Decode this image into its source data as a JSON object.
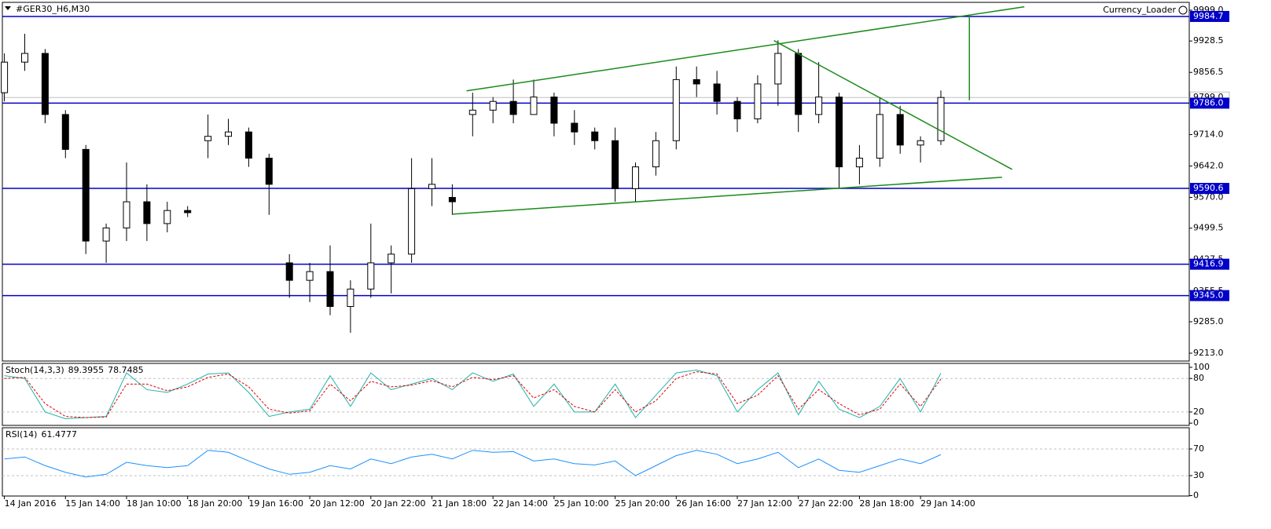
{
  "chart_data": [
    {
      "type": "candlestick",
      "title": "#GER30_H6,M30",
      "watermark": "Currency_Loader",
      "open": [
        9810,
        9880,
        9900,
        9760,
        9680,
        9470,
        9500,
        9560,
        9510,
        9540,
        9700,
        9710,
        9720,
        9660,
        9420,
        9380,
        9400,
        9320,
        9360,
        9420,
        9440,
        9590,
        9570,
        9760,
        9770,
        9790,
        9760,
        9800,
        9740,
        9720,
        9700,
        9590,
        9640,
        9700,
        9840,
        9830,
        9790,
        9750,
        9830,
        9900,
        9760,
        9800,
        9640,
        9660,
        9760,
        9690,
        9700
      ],
      "high": [
        9900,
        9945,
        9910,
        9770,
        9690,
        9510,
        9650,
        9600,
        9560,
        9550,
        9760,
        9750,
        9730,
        9670,
        9440,
        9420,
        9460,
        9380,
        9510,
        9460,
        9660,
        9660,
        9600,
        9810,
        9800,
        9840,
        9840,
        9810,
        9770,
        9730,
        9730,
        9650,
        9720,
        9870,
        9870,
        9860,
        9800,
        9850,
        9930,
        9910,
        9880,
        9810,
        9690,
        9800,
        9780,
        9710,
        9815
      ],
      "low": [
        9790,
        9860,
        9740,
        9660,
        9440,
        9420,
        9470,
        9470,
        9490,
        9525,
        9660,
        9690,
        9640,
        9530,
        9340,
        9330,
        9300,
        9260,
        9340,
        9350,
        9420,
        9550,
        9530,
        9710,
        9740,
        9740,
        9760,
        9710,
        9690,
        9680,
        9560,
        9560,
        9620,
        9680,
        9800,
        9760,
        9720,
        9740,
        9780,
        9720,
        9740,
        9590,
        9600,
        9640,
        9670,
        9650,
        9690
      ],
      "close": [
        9880,
        9900,
        9760,
        9680,
        9470,
        9500,
        9560,
        9510,
        9540,
        9535,
        9710,
        9720,
        9660,
        9600,
        9380,
        9400,
        9320,
        9360,
        9420,
        9440,
        9590,
        9600,
        9560,
        9770,
        9790,
        9760,
        9800,
        9740,
        9720,
        9700,
        9590,
        9640,
        9700,
        9840,
        9830,
        9790,
        9750,
        9830,
        9900,
        9760,
        9800,
        9640,
        9660,
        9760,
        9690,
        9700,
        9799
      ],
      "xlim": [
        -0.1,
        58.2
      ],
      "xticks": [
        {
          "value": 0,
          "label": "14 Jan 2016"
        },
        {
          "value": 3,
          "label": "15 Jan 14:00"
        },
        {
          "value": 6,
          "label": "18 Jan 10:00"
        },
        {
          "value": 9,
          "label": "18 Jan 20:00"
        },
        {
          "value": 12,
          "label": "19 Jan 16:00"
        },
        {
          "value": 15,
          "label": "20 Jan 12:00"
        },
        {
          "value": 18,
          "label": "20 Jan 22:00"
        },
        {
          "value": 21,
          "label": "21 Jan 18:00"
        },
        {
          "value": 24,
          "label": "22 Jan 14:00"
        },
        {
          "value": 27,
          "label": "25 Jan 10:00"
        },
        {
          "value": 30,
          "label": "25 Jan 20:00"
        },
        {
          "value": 33,
          "label": "26 Jan 16:00"
        },
        {
          "value": 36,
          "label": "27 Jan 12:00"
        },
        {
          "value": 39,
          "label": "27 Jan 22:00"
        },
        {
          "value": 42,
          "label": "28 Jan 18:00"
        },
        {
          "value": 45,
          "label": "29 Jan 14:00"
        }
      ],
      "ylim": [
        9195,
        10017
      ],
      "yticks": [
        {
          "value": 9999,
          "label": "9999.0"
        },
        {
          "value": 9928.5,
          "label": "9928.5"
        },
        {
          "value": 9856.5,
          "label": "9856.5"
        },
        {
          "value": 9714,
          "label": "9714.0"
        },
        {
          "value": 9642,
          "label": "9642.0"
        },
        {
          "value": 9570,
          "label": "9570.0"
        },
        {
          "value": 9499.5,
          "label": "9499.5"
        },
        {
          "value": 9427.5,
          "label": "9427.5"
        },
        {
          "value": 9355.5,
          "label": "9355.5"
        },
        {
          "value": 9285,
          "label": "9285.0"
        },
        {
          "value": 9213,
          "label": "9213.0"
        }
      ],
      "levels": [
        {
          "value": 9984.7,
          "label": "9984.7"
        },
        {
          "value": 9786,
          "label": "9786.0"
        },
        {
          "value": 9590.6,
          "label": "9590.6"
        },
        {
          "value": 9416.9,
          "label": "9416.9"
        },
        {
          "value": 9345,
          "label": "9345.0"
        }
      ],
      "level_color": "#0000c8",
      "last_price": {
        "value": 9799,
        "label": "9799.0"
      },
      "trendline_color": "#1a8a1a",
      "trendlines": [
        {
          "x": [
            22.7,
            50.1
          ],
          "y": [
            9814.2,
            10006.8
          ]
        },
        {
          "x": [
            22,
            49
          ],
          "y": [
            9531.6,
            9616.2
          ]
        },
        {
          "x": [
            37.8,
            49.5
          ],
          "y": [
            9929.4,
            9634.2
          ]
        },
        {
          "x": [
            47.4,
            47.4
          ],
          "y": [
            9987,
            9792.6
          ]
        }
      ]
    },
    {
      "type": "line",
      "title": "Stoch(14,3,3)",
      "ylim": [
        -4,
        107
      ],
      "yticks": [
        100,
        80,
        20,
        0
      ],
      "levels": [
        80,
        20
      ],
      "series": [
        {
          "color": "#20b2aa",
          "dash": false,
          "values": [
            85,
            80,
            20,
            8,
            10,
            12,
            90,
            60,
            55,
            70,
            88,
            90,
            55,
            12,
            20,
            25,
            85,
            30,
            90,
            60,
            70,
            80,
            60,
            90,
            75,
            88,
            30,
            70,
            20,
            20,
            70,
            10,
            50,
            90,
            95,
            85,
            20,
            60,
            90,
            15,
            75,
            25,
            10,
            30,
            80,
            20,
            89.3955
          ]
        },
        {
          "color": "#e00000",
          "dash": true,
          "values": [
            80,
            82,
            35,
            12,
            10,
            11,
            70,
            70,
            58,
            65,
            82,
            88,
            65,
            25,
            18,
            22,
            70,
            40,
            75,
            65,
            68,
            76,
            65,
            82,
            78,
            85,
            45,
            60,
            30,
            20,
            60,
            20,
            40,
            80,
            92,
            88,
            35,
            50,
            85,
            25,
            60,
            35,
            15,
            25,
            70,
            30,
            78.7485
          ]
        }
      ]
    },
    {
      "type": "line",
      "title": "RSI(14)",
      "ylim": [
        -0.6,
        101.8
      ],
      "yticks": [
        70,
        30,
        0
      ],
      "levels": [
        70,
        30
      ],
      "series": [
        {
          "color": "#1e90ff",
          "dash": false,
          "values": [
            55,
            58,
            45,
            35,
            28,
            32,
            50,
            45,
            42,
            45,
            68,
            65,
            52,
            40,
            32,
            35,
            45,
            40,
            55,
            48,
            58,
            62,
            55,
            68,
            65,
            66,
            52,
            55,
            48,
            46,
            52,
            30,
            45,
            60,
            68,
            62,
            48,
            55,
            65,
            42,
            55,
            38,
            35,
            45,
            55,
            48,
            61.4777
          ]
        }
      ]
    }
  ]
}
